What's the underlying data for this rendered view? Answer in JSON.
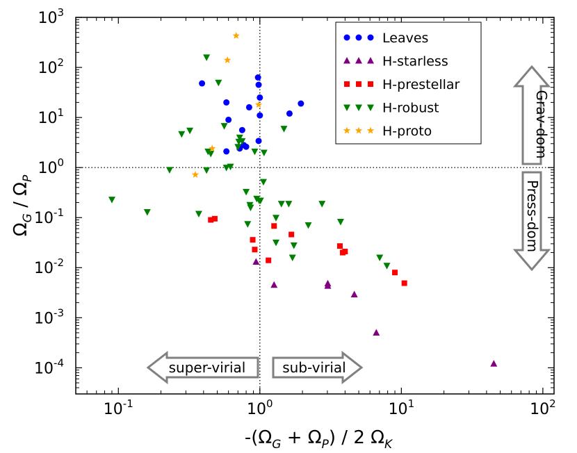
{
  "chart_data": {
    "type": "scatter",
    "x_scale": "log",
    "y_scale": "log",
    "xlim": [
      0.05,
      120
    ],
    "ylim": [
      3e-05,
      1000
    ],
    "x_ticks": [
      {
        "value": 0.1,
        "base": "10",
        "exp": "-1"
      },
      {
        "value": 1,
        "base": "10",
        "exp": "0"
      },
      {
        "value": 10,
        "base": "10",
        "exp": "1"
      },
      {
        "value": 100,
        "base": "10",
        "exp": "2"
      }
    ],
    "y_ticks": [
      {
        "value": 0.0001,
        "base": "10",
        "exp": "-4"
      },
      {
        "value": 0.001,
        "base": "10",
        "exp": "-3"
      },
      {
        "value": 0.01,
        "base": "10",
        "exp": "-2"
      },
      {
        "value": 0.1,
        "base": "10",
        "exp": "-1"
      },
      {
        "value": 1,
        "base": "10",
        "exp": "0"
      },
      {
        "value": 10,
        "base": "10",
        "exp": "1"
      },
      {
        "value": 100,
        "base": "10",
        "exp": "2"
      },
      {
        "value": 1000,
        "base": "10",
        "exp": "3"
      }
    ],
    "xlabel": {
      "prefix": "-(Ω",
      "sub1": "G",
      "mid": " + Ω",
      "sub2": "P",
      "suffix": ") / 2 Ω",
      "sub3": "K"
    },
    "ylabel": {
      "p1": "Ω",
      "s1": "G",
      "p2": " / Ω",
      "s2": "P"
    },
    "reference_lines": {
      "x": 1,
      "y": 1,
      "style": "dotted"
    },
    "series": [
      {
        "name": "Leaves",
        "marker": "circle",
        "color": "#0000ff",
        "points": [
          [
            0.39,
            48
          ],
          [
            0.58,
            20
          ],
          [
            0.6,
            9
          ],
          [
            0.58,
            2.1
          ],
          [
            0.72,
            2.4
          ],
          [
            0.75,
            5.6
          ],
          [
            0.77,
            2.8
          ],
          [
            0.8,
            2.6
          ],
          [
            0.84,
            16
          ],
          [
            0.97,
            63
          ],
          [
            0.98,
            45
          ],
          [
            1.0,
            11
          ],
          [
            0.98,
            3.4
          ],
          [
            1.0,
            25
          ],
          [
            1.62,
            12
          ],
          [
            1.95,
            19
          ]
        ]
      },
      {
        "name": "H-starless",
        "marker": "triangle-up",
        "color": "#800080",
        "points": [
          [
            0.94,
            0.013
          ],
          [
            1.26,
            0.0045
          ],
          [
            3.02,
            0.0048
          ],
          [
            3.02,
            0.0043
          ],
          [
            4.65,
            0.0029
          ],
          [
            6.65,
            0.0005
          ],
          [
            45,
            0.00012
          ]
        ]
      },
      {
        "name": "H-prestellar",
        "marker": "square",
        "color": "#ff0000",
        "points": [
          [
            0.45,
            0.09
          ],
          [
            0.48,
            0.095
          ],
          [
            0.89,
            0.036
          ],
          [
            0.92,
            0.023
          ],
          [
            1.15,
            0.014
          ],
          [
            1.26,
            0.068
          ],
          [
            1.67,
            0.046
          ],
          [
            3.68,
            0.027
          ],
          [
            3.85,
            0.02
          ],
          [
            4.0,
            0.021
          ],
          [
            9.0,
            0.008
          ],
          [
            10.5,
            0.0049
          ]
        ]
      },
      {
        "name": "H-robust",
        "marker": "triangle-down",
        "color": "#008000",
        "points": [
          [
            0.09,
            0.23
          ],
          [
            0.16,
            0.13
          ],
          [
            0.23,
            0.9
          ],
          [
            0.28,
            4.7
          ],
          [
            0.32,
            5.5
          ],
          [
            0.37,
            0.12
          ],
          [
            0.42,
            0.89
          ],
          [
            0.43,
            2.1
          ],
          [
            0.45,
            1.9
          ],
          [
            0.51,
            50
          ],
          [
            0.56,
            6.8
          ],
          [
            0.58,
            1.0
          ],
          [
            0.62,
            1.05
          ],
          [
            0.7,
            2.6
          ],
          [
            0.71,
            3.3
          ],
          [
            0.75,
            3.4
          ],
          [
            0.72,
            4.0
          ],
          [
            0.8,
            0.33
          ],
          [
            0.85,
            0.18
          ],
          [
            0.82,
            0.075
          ],
          [
            0.86,
            0.16
          ],
          [
            0.92,
            2.1
          ],
          [
            0.95,
            0.24
          ],
          [
            0.99,
            0.22
          ],
          [
            1.01,
            0.22
          ],
          [
            1.06,
            0.52
          ],
          [
            1.07,
            2.0
          ],
          [
            1.3,
            0.1
          ],
          [
            1.3,
            0.032
          ],
          [
            1.42,
            0.19
          ],
          [
            1.6,
            0.19
          ],
          [
            1.7,
            0.016
          ],
          [
            1.74,
            0.028
          ],
          [
            2.2,
            0.071
          ],
          [
            2.75,
            0.19
          ],
          [
            3.72,
            0.083
          ],
          [
            7.03,
            0.016
          ],
          [
            7.9,
            0.011
          ],
          [
            1.48,
            6.0
          ],
          [
            0.42,
            160
          ]
        ]
      },
      {
        "name": "H-proto",
        "marker": "star",
        "color": "#ffa500",
        "points": [
          [
            0.35,
            0.72
          ],
          [
            0.46,
            2.4
          ],
          [
            0.59,
            140
          ],
          [
            0.68,
            430
          ],
          [
            0.98,
            18
          ]
        ]
      }
    ],
    "legend": {
      "position": "top-right",
      "entries": [
        "Leaves",
        "H-starless",
        "H-prestellar",
        "H-robust",
        "H-proto"
      ]
    },
    "annotations": {
      "grav_dom": "Grav-dom",
      "press_dom": "Press-dom",
      "super_virial": "super-virial",
      "sub_virial": "sub-virial"
    }
  }
}
